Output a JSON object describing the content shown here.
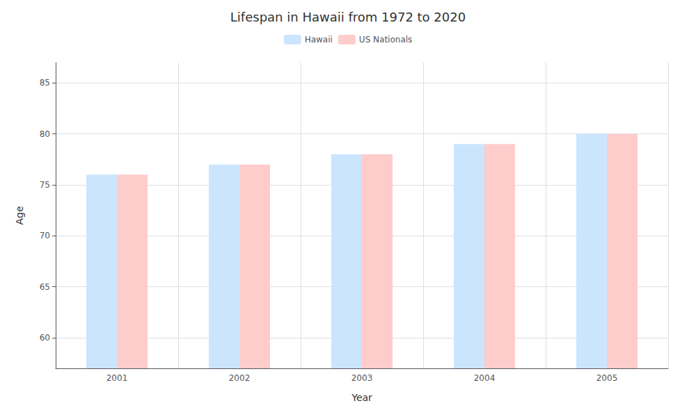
{
  "chart_data": {
    "type": "bar",
    "title": "Lifespan in Hawaii from 1972 to 2020",
    "xlabel": "Year",
    "ylabel": "Age",
    "categories": [
      "2001",
      "2002",
      "2003",
      "2004",
      "2005"
    ],
    "series": [
      {
        "name": "Hawaii",
        "color": "#cce5ff",
        "values": [
          76,
          77,
          78,
          79,
          80
        ]
      },
      {
        "name": "US Nationals",
        "color": "#ffcccc",
        "values": [
          76,
          77,
          78,
          79,
          80
        ]
      }
    ],
    "ylim": [
      57,
      87
    ],
    "yticks": [
      60,
      65,
      70,
      75,
      80,
      85
    ],
    "grid": true,
    "legend": "top"
  }
}
